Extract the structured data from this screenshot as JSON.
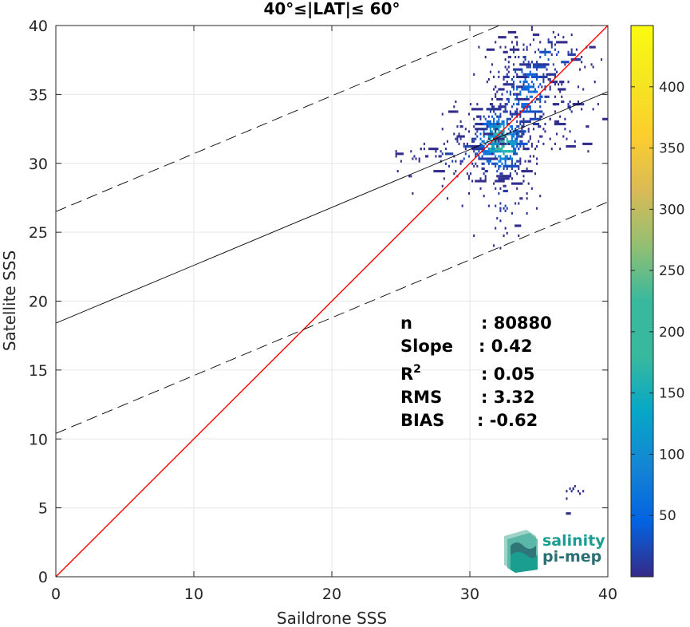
{
  "chart_data": {
    "type": "heatmap",
    "title": "40°≤|LAT|≤ 60°",
    "xlabel": "Saildrone SSS",
    "ylabel": "Satellite SSS",
    "xlim": [
      0,
      40
    ],
    "ylim": [
      0,
      40
    ],
    "xticks": [
      0,
      10,
      20,
      30,
      40
    ],
    "yticks": [
      0,
      5,
      10,
      15,
      20,
      25,
      30,
      35,
      40
    ],
    "grid": true,
    "lines": [
      {
        "name": "1:1",
        "slope": 1,
        "intercept": 0,
        "color": "#ff0000",
        "style": "solid"
      },
      {
        "name": "fit",
        "slope": 0.42,
        "intercept": 18.4,
        "color": "#000000",
        "style": "solid"
      },
      {
        "name": "fit + 8",
        "slope": 0.42,
        "intercept": 26.5,
        "color": "#000000",
        "style": "dashed"
      },
      {
        "name": "fit - 8",
        "slope": 0.42,
        "intercept": 10.4,
        "color": "#000000",
        "style": "dashed"
      }
    ],
    "colorbar": {
      "min": 0,
      "max": 450,
      "ticks": [
        50,
        100,
        150,
        200,
        250,
        300,
        350,
        400
      ],
      "colormap": "parula"
    },
    "density_clusters": [
      {
        "x": 32.0,
        "y": 31.5,
        "sx": 1.2,
        "sy": 1.6,
        "count": 420,
        "peak": 260
      },
      {
        "x": 34.0,
        "y": 35.0,
        "sx": 1.3,
        "sy": 2.0,
        "count": 240,
        "peak": 90
      },
      {
        "x": 35.5,
        "y": 37.5,
        "sx": 2.0,
        "sy": 1.5,
        "count": 90,
        "peak": 40
      },
      {
        "x": 29.5,
        "y": 30.5,
        "sx": 2.0,
        "sy": 1.2,
        "count": 80,
        "peak": 30
      },
      {
        "x": 32.5,
        "y": 27.0,
        "sx": 1.0,
        "sy": 1.5,
        "count": 50,
        "peak": 25
      },
      {
        "x": 37.0,
        "y": 33.0,
        "sx": 1.0,
        "sy": 1.5,
        "count": 30,
        "peak": 20
      },
      {
        "x": 26.0,
        "y": 30.5,
        "sx": 1.0,
        "sy": 0.4,
        "count": 12,
        "peak": 10
      },
      {
        "x": 37.5,
        "y": 6.0,
        "sx": 0.5,
        "sy": 0.5,
        "count": 12,
        "peak": 10
      }
    ],
    "stats": [
      {
        "label": "n",
        "value": ": 80880"
      },
      {
        "label": "Slope",
        "value": ": 0.42"
      },
      {
        "label": "R2",
        "value": ": 0.05"
      },
      {
        "label": "RMS",
        "value": ": 3.32"
      },
      {
        "label": "BIAS",
        "value": ": -0.62"
      }
    ]
  },
  "logo": {
    "line1": "salinity",
    "line2": "pi-mep"
  },
  "colors": {
    "one_to_one": "#ff0000",
    "fit_line": "#000000",
    "grid": "#e6e6e6",
    "logo_teal": "#1a9e8f",
    "logo_dark": "#2a6f73"
  }
}
